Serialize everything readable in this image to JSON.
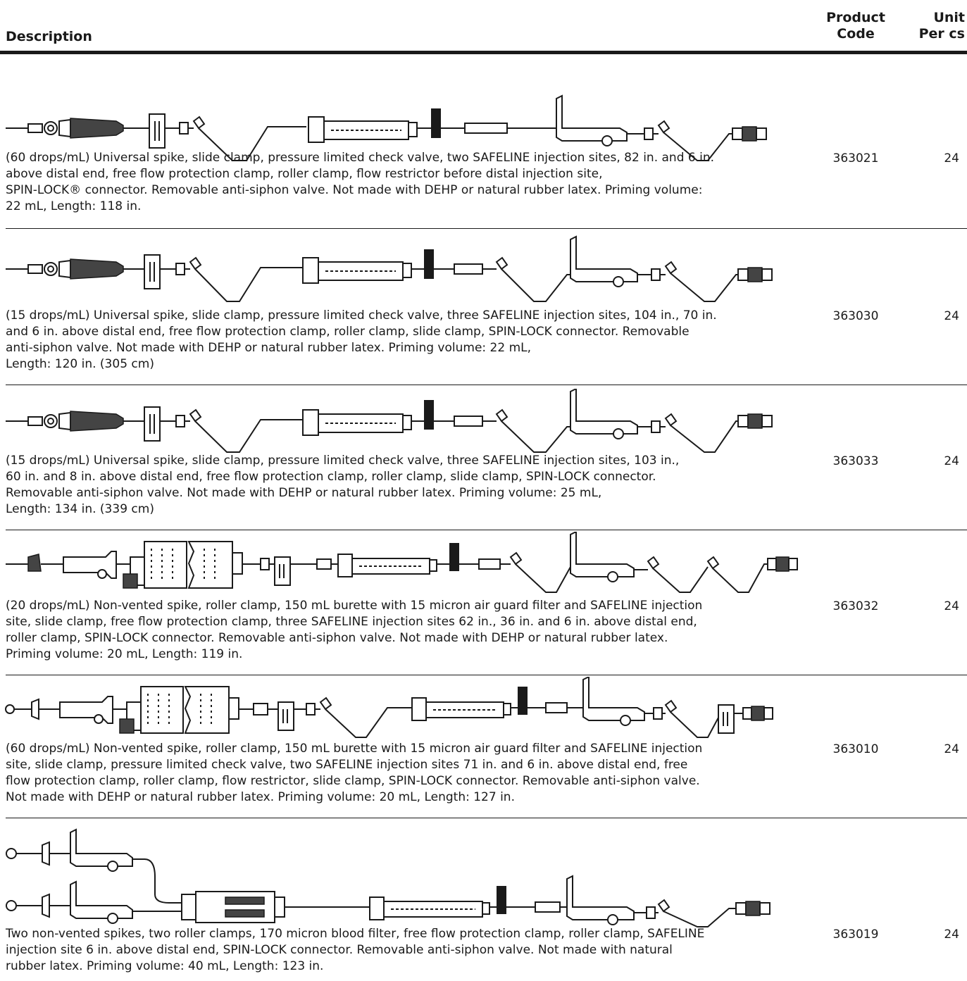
{
  "header": {
    "description": "Description",
    "product_code": "Product\nCode",
    "unit_per_cs": "Unit\nPer cs"
  },
  "rows": [
    {
      "description": "(60 drops/mL) Universal spike, slide clamp, pressure limited check valve, two SAFELINE injection sites, 82 in. and 6 in.\nabove distal end, free flow protection clamp, roller clamp, flow restrictor before distal injection site,\nSPIN-LOCK® connector. Removable anti-siphon valve. Not made with DEHP or natural rubber latex. Priming volume:\n22 mL, Length: 118 in.",
      "code": "363021",
      "unit": "24"
    },
    {
      "description": "(15 drops/mL) Universal spike, slide clamp, pressure limited check valve, three SAFELINE injection sites, 104 in., 70 in.\nand 6 in. above distal end, free flow protection clamp, roller clamp, slide clamp, SPIN-LOCK connector. Removable\nanti-siphon valve. Not made with DEHP or natural rubber latex. Priming volume: 22 mL,\nLength: 120 in. (305 cm)",
      "code": "363030",
      "unit": "24"
    },
    {
      "description": "(15 drops/mL) Universal spike, slide clamp, pressure limited check valve, three SAFELINE injection sites, 103 in.,\n60 in. and 8 in. above distal end, free flow protection clamp, roller clamp, slide clamp, SPIN-LOCK connector.\nRemovable anti-siphon valve. Not made with DEHP or natural rubber latex. Priming volume: 25 mL,\nLength: 134 in. (339 cm)",
      "code": "363033",
      "unit": "24"
    },
    {
      "description": "(20 drops/mL) Non-vented spike, roller clamp, 150 mL burette with 15 micron air guard filter and SAFELINE injection\nsite, slide clamp, free flow protection clamp, three SAFELINE injection sites 62 in., 36 in. and 6 in. above distal end,\nroller clamp, SPIN-LOCK connector. Removable anti-siphon valve. Not made with DEHP or natural rubber latex.\nPriming volume: 20 mL, Length: 119 in.",
      "code": "363032",
      "unit": "24"
    },
    {
      "description": "(60 drops/mL) Non-vented spike, roller clamp, 150 mL burette with 15 micron air guard filter and SAFELINE injection\nsite, slide clamp, pressure limited check valve, two SAFELINE injection sites 71 in. and 6 in. above distal end, free\nflow protection clamp, roller clamp, flow restrictor, slide clamp, SPIN-LOCK connector. Removable anti-siphon valve.\nNot made with DEHP or natural rubber latex. Priming volume: 20 mL, Length: 127 in.",
      "code": "363010",
      "unit": "24"
    },
    {
      "description": "Two non-vented spikes, two roller clamps, 170 micron blood filter, free flow protection clamp, roller clamp, SAFELINE\ninjection site 6 in. above distal end, SPIN-LOCK connector. Removable anti-siphon valve. Not made with natural\nrubber latex. Priming volume:  40 mL, Length: 123 in.",
      "code": "363019",
      "unit": "24"
    }
  ]
}
